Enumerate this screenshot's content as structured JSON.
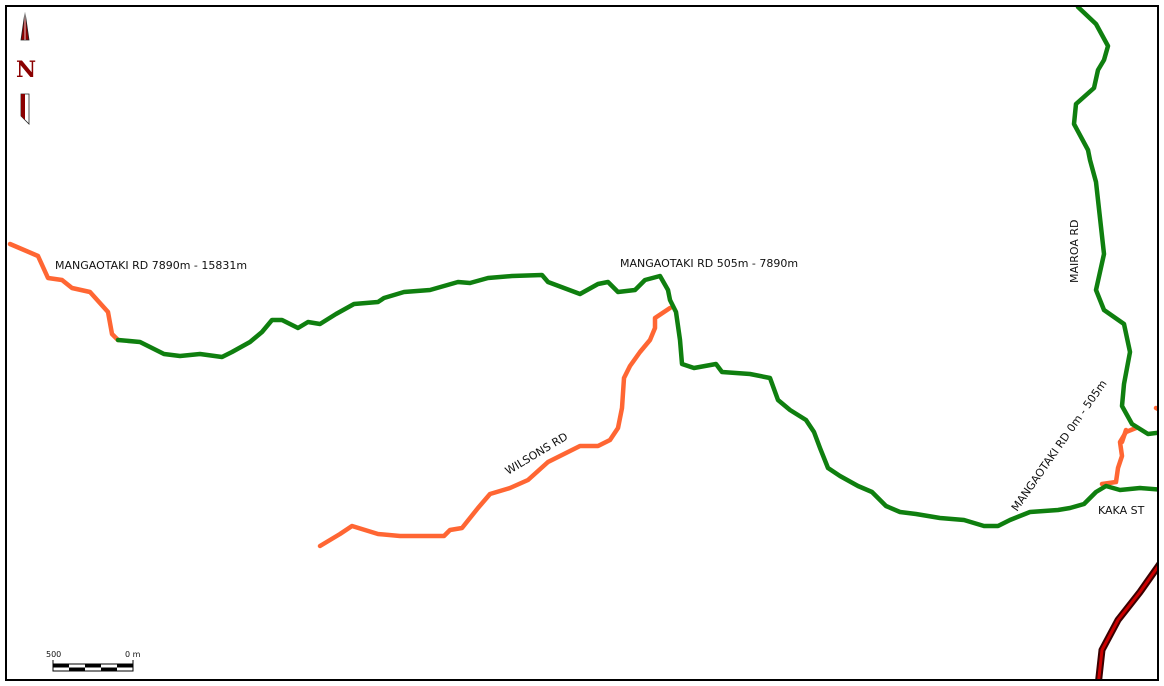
{
  "map": {
    "road_labels": {
      "mangaotaki_far": "MANGAOTAKI RD 7890m - 15831m",
      "mangaotaki_mid": "MANGAOTAKI RD 505m - 7890m",
      "mangaotaki_near": "MANGAOTAKI RD 0m - 505m",
      "wilsons": "WILSONS RD",
      "mairoa": "MAIROA RD",
      "kaka": "KAKA ST"
    },
    "north_arrow": {
      "letter": "N"
    },
    "scale_bar": {
      "left_label": "500",
      "right_label": "0 m"
    },
    "colors": {
      "road_green": "#0f7f0f",
      "road_orange": "#ff6633",
      "rail_red": "#cc0000",
      "rail_dark": "#3a0000",
      "north_arrow": "#8b0000"
    }
  }
}
